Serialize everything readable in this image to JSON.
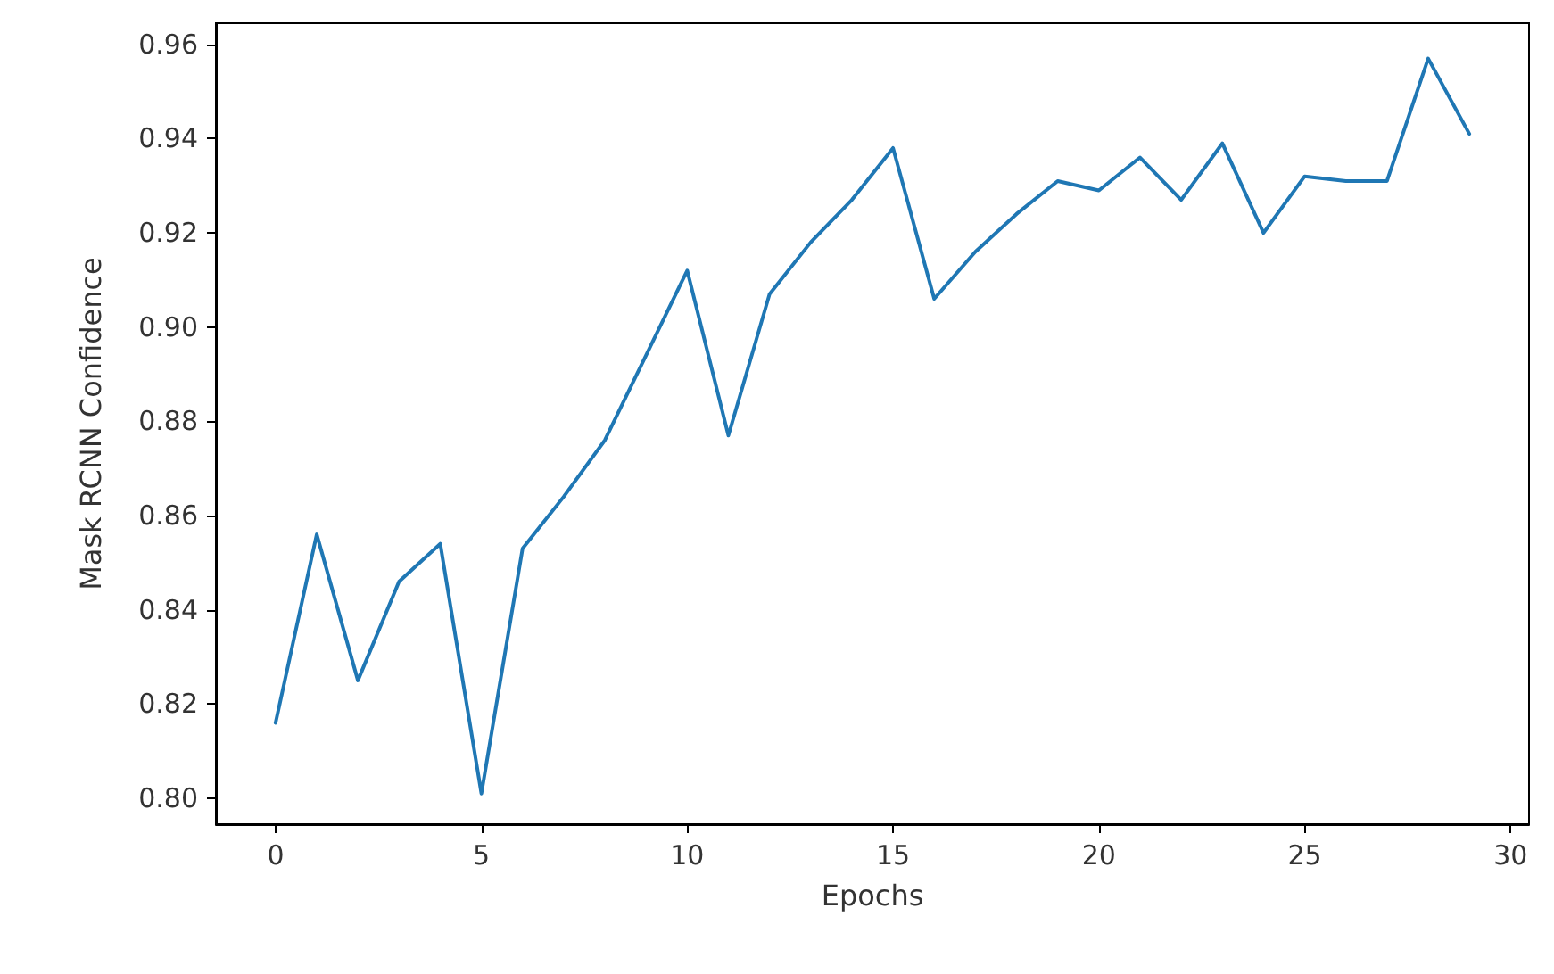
{
  "chart_data": {
    "type": "line",
    "xlabel": "Epochs",
    "ylabel": "Mask RCNN Confidence",
    "x": [
      0,
      1,
      2,
      3,
      4,
      5,
      6,
      7,
      8,
      9,
      10,
      11,
      12,
      13,
      14,
      15,
      16,
      17,
      18,
      19,
      20,
      21,
      22,
      23,
      24,
      25,
      26,
      27,
      28,
      29
    ],
    "series": [
      {
        "color": "#1f77b4",
        "values": [
          0.816,
          0.856,
          0.825,
          0.846,
          0.854,
          0.801,
          0.853,
          0.864,
          0.876,
          0.894,
          0.912,
          0.877,
          0.907,
          0.918,
          0.927,
          0.938,
          0.906,
          0.916,
          0.924,
          0.931,
          0.929,
          0.936,
          0.927,
          0.939,
          0.92,
          0.932,
          0.931,
          0.931,
          0.957,
          0.941
        ]
      }
    ],
    "xlim": [
      -1.45,
      30.45
    ],
    "xticks": [
      0,
      5,
      10,
      15,
      20,
      25,
      30
    ],
    "ylim": [
      0.7945,
      0.9645
    ],
    "yticks": [
      {
        "value": 0.8,
        "label": "0.80"
      },
      {
        "value": 0.82,
        "label": "0.82"
      },
      {
        "value": 0.84,
        "label": "0.84"
      },
      {
        "value": 0.86,
        "label": "0.86"
      },
      {
        "value": 0.88,
        "label": "0.88"
      },
      {
        "value": 0.9,
        "label": "0.90"
      },
      {
        "value": 0.92,
        "label": "0.92"
      },
      {
        "value": 0.94,
        "label": "0.94"
      },
      {
        "value": 0.96,
        "label": "0.96"
      }
    ],
    "grid": false,
    "marker": "none",
    "line_style": "solid"
  }
}
